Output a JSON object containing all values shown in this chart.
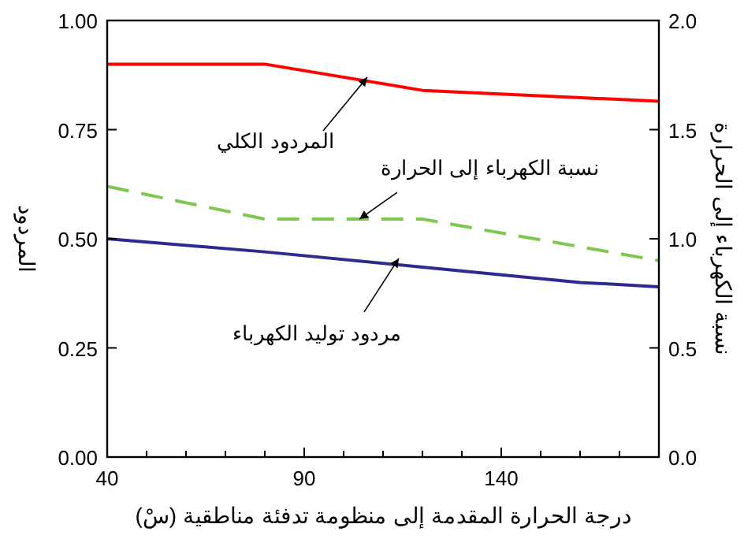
{
  "chart_data": {
    "type": "line",
    "xlabel": "درجة الحرارة المقدمة إلى منظومة تدفئة مناطقية (سْ)",
    "ylabel": "المردود",
    "y2label": "نسبة الكهرباء إلى الحرارة",
    "xlim": [
      40,
      180
    ],
    "xticks": [
      40,
      {
        "value": 50,
        "label": null
      },
      {
        "value": 60,
        "label": null
      },
      {
        "value": 70,
        "label": null
      },
      {
        "value": 80,
        "label": null
      },
      90,
      {
        "value": 100,
        "label": null
      },
      {
        "value": 110,
        "label": null
      },
      {
        "value": 120,
        "label": null
      },
      {
        "value": 130,
        "label": null
      },
      140,
      {
        "value": 150,
        "label": null
      },
      {
        "value": 160,
        "label": null
      },
      {
        "value": 170,
        "label": null
      }
    ],
    "ylim": [
      0,
      1
    ],
    "yticks": [
      {
        "value": 0,
        "label": "0.00"
      },
      0.25,
      {
        "value": 0.5,
        "label": "0.50"
      },
      0.75,
      {
        "value": 1,
        "label": "1.00"
      }
    ],
    "y2lim": [
      0,
      2
    ],
    "y2ticks": [
      {
        "value": 0,
        "label": "0.0"
      },
      0.5,
      {
        "value": 1,
        "label": "1.0"
      },
      1.5,
      {
        "value": 2,
        "label": "2.0"
      }
    ],
    "grid": false,
    "series": [
      {
        "color": "#ff0000",
        "line_style": "solid",
        "x": [
          40,
          80,
          120,
          180
        ],
        "values": [
          0.9,
          0.9,
          0.84,
          0.815
        ]
      },
      {
        "color": "#7ec850",
        "line_style": "dashed",
        "axis": "y2",
        "x": [
          40,
          80,
          120,
          180
        ],
        "values": [
          1.24,
          1.09,
          1.09,
          0.9
        ]
      },
      {
        "color": "#2e2a8f",
        "line_style": "solid",
        "x": [
          40,
          80,
          120,
          160,
          180
        ],
        "values": [
          0.5,
          0.47,
          0.435,
          0.4,
          0.39
        ]
      }
    ],
    "annotations": [
      {
        "text": "المردود الكلي",
        "x": 106,
        "y": 0.87
      },
      {
        "text": "نسبة الكهرباء إلى الحرارة",
        "x": 104,
        "y": 0.545
      },
      {
        "text": "مردود توليد الكهرباء",
        "x": 114,
        "y": 0.455
      }
    ]
  }
}
